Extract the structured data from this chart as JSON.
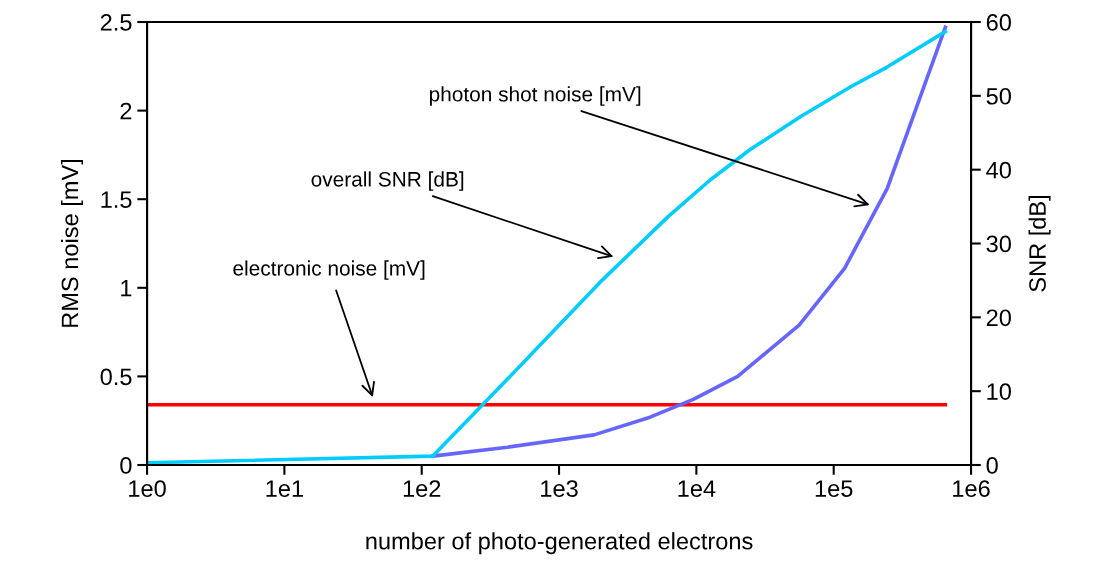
{
  "chart_data": {
    "type": "line",
    "xlabel": "number of photo-generated electrons",
    "ylabel": "RMS noise [mV]",
    "y2label": "SNR [dB]",
    "log": "x",
    "xlim": [
      1,
      1000000
    ],
    "xticks": [
      {
        "value": 1,
        "label": "1e0"
      },
      {
        "value": 10,
        "label": "1e1"
      },
      {
        "value": 100,
        "label": "1e2"
      },
      {
        "value": 1000,
        "label": "1e3"
      },
      {
        "value": 10000,
        "label": "1e4"
      },
      {
        "value": 100000,
        "label": "1e5"
      },
      {
        "value": 1000000,
        "label": "1e6"
      }
    ],
    "ylim": [
      0,
      2.5
    ],
    "yticks": [
      0,
      0.5,
      1,
      1.5,
      2,
      2.5
    ],
    "y2lim": [
      0,
      60
    ],
    "y2ticks": [
      0,
      10,
      20,
      30,
      40,
      50,
      60
    ],
    "grid": false,
    "marker": "none",
    "line_style": "solid",
    "series": [
      {
        "color": "#ff0000",
        "x": [
          1,
          650000
        ],
        "values": [
          0.34,
          0.34
        ]
      },
      {
        "color": "#6666ff",
        "x": [
          120,
          420,
          1800,
          4600,
          9500,
          20000,
          56000,
          120000,
          245000,
          650000
        ],
        "values": [
          0.05,
          0.1,
          0.17,
          0.27,
          0.37,
          0.5,
          0.79,
          1.11,
          1.56,
          2.47
        ]
      },
      {
        "color": "#00ccff",
        "axis": "y2",
        "x": [
          1,
          120,
          420,
          2000,
          6200,
          12600,
          24500,
          57500,
          132000,
          245000,
          650000
        ],
        "values": [
          0.3,
          1.2,
          11.6,
          24.8,
          33.6,
          38.6,
          42.7,
          47.2,
          51.2,
          53.9,
          58.7
        ]
      }
    ],
    "annotations": [
      "photon shot noise [mV]",
      "overall SNR [dB]",
      "electronic noise [mV]"
    ]
  }
}
